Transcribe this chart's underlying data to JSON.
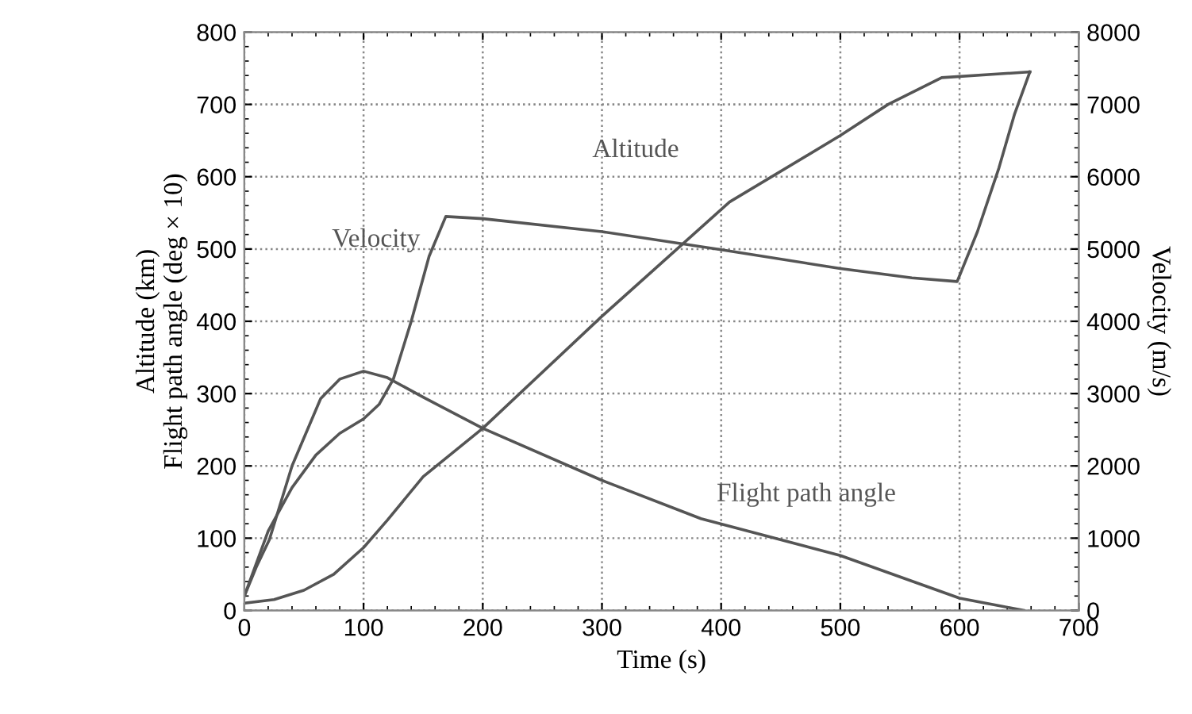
{
  "chart_data": {
    "type": "line",
    "xlabel": "Time (s)",
    "ylabel": "Altitude (km)\nFlight path angle (deg × 10)",
    "y2label": "Velocity (m/s)",
    "xlim": [
      0,
      700
    ],
    "xticks": [
      0,
      100,
      200,
      300,
      400,
      500,
      600,
      700
    ],
    "ylim": [
      0,
      800
    ],
    "yticks": [
      0,
      100,
      200,
      300,
      400,
      500,
      600,
      700,
      800
    ],
    "y2lim": [
      0,
      8000
    ],
    "y2ticks": [
      0,
      1000,
      2000,
      3000,
      4000,
      5000,
      6000,
      7000,
      8000
    ],
    "grid": true,
    "legend": false,
    "marker": "none",
    "line_style": "solid",
    "series": [
      {
        "name": "Velocity",
        "color": "#555555",
        "axis": "y2",
        "x": [
          0,
          20,
          40,
          60,
          80,
          100,
          113,
          125,
          140,
          155,
          169,
          200,
          300,
          400,
          500,
          560,
          598,
          615,
          633,
          646,
          659
        ],
        "values": [
          200,
          1100,
          1700,
          2150,
          2450,
          2650,
          2850,
          3200,
          4000,
          4900,
          5450,
          5420,
          5240,
          4990,
          4730,
          4600,
          4550,
          5240,
          6120,
          6860,
          7450
        ]
      },
      {
        "name": "Altitude",
        "color": "#555555",
        "x": [
          0,
          25,
          50,
          75,
          100,
          120,
          150,
          200,
          300,
          407,
          500,
          540,
          585,
          659
        ],
        "values": [
          10,
          15,
          28,
          50,
          87,
          125,
          185,
          252,
          407,
          565,
          657,
          700,
          737,
          745
        ]
      },
      {
        "name": "Flight path angle",
        "color": "#555555",
        "x": [
          0,
          10,
          21,
          40,
          64,
          80,
          100,
          120,
          150,
          200,
          300,
          383,
          500,
          600,
          654
        ],
        "values": [
          20,
          60,
          98,
          200,
          293,
          320,
          331,
          322,
          295,
          252,
          180,
          127,
          76,
          17,
          0
        ]
      }
    ]
  }
}
